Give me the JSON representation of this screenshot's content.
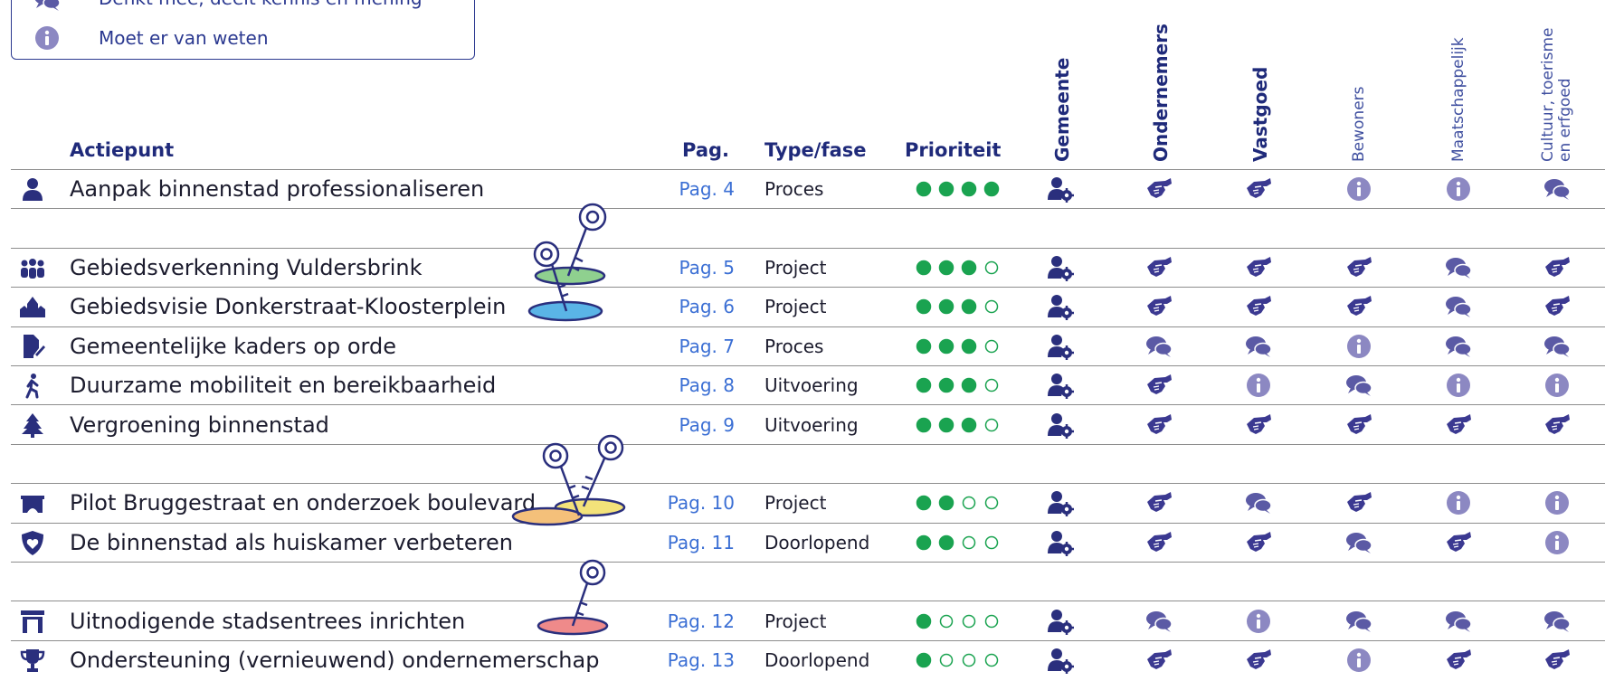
{
  "legend": {
    "items": [
      "Denkt mee, deelt kennis en mening",
      "Moet er van weten"
    ]
  },
  "table": {
    "headers": [
      "Actiepunt",
      "Pag.",
      "Type/fase",
      "Prioriteit"
    ],
    "stakeholders": [
      "Gemeente",
      "Ondernemers",
      "Vastgoed",
      "Bewoners",
      "Maatschappelijk",
      "Cultuur, toerisme en erfgoed"
    ],
    "priority_max": 4,
    "rows": [
      {
        "name": "Aanpak binnenstad professionaliseren",
        "page": "Pag. 4",
        "type": "Proces",
        "priority": 4
      },
      {
        "name": "Gebiedsverkenning Vuldersbrink",
        "page": "Pag. 5",
        "type": "Project",
        "priority": 3
      },
      {
        "name": "Gebiedsvisie Donkerstraat-Kloosterplein",
        "page": "Pag. 6",
        "type": "Project",
        "priority": 3
      },
      {
        "name": "Gemeentelijke kaders op orde",
        "page": "Pag. 7",
        "type": "Proces",
        "priority": 3
      },
      {
        "name": "Duurzame mobiliteit en bereikbaarheid",
        "page": "Pag. 8",
        "type": "Uitvoering",
        "priority": 3
      },
      {
        "name": "Vergroening binnenstad",
        "page": "Pag. 9",
        "type": "Uitvoering",
        "priority": 3
      },
      {
        "name": "Pilot Bruggestraat en onderzoek boulevard",
        "page": "Pag. 10",
        "type": "Project",
        "priority": 2
      },
      {
        "name": "De binnenstad als huiskamer verbeteren",
        "page": "Pag. 11",
        "type": "Doorlopend",
        "priority": 2
      },
      {
        "name": "Uitnodigende stadsentrees inrichten",
        "page": "Pag. 12",
        "type": "Project",
        "priority": 1
      },
      {
        "name": "Ondersteuning (vernieuwend) ondernemerschap",
        "page": "Pag. 13",
        "type": "Doorlopend",
        "priority": 1
      }
    ]
  }
}
